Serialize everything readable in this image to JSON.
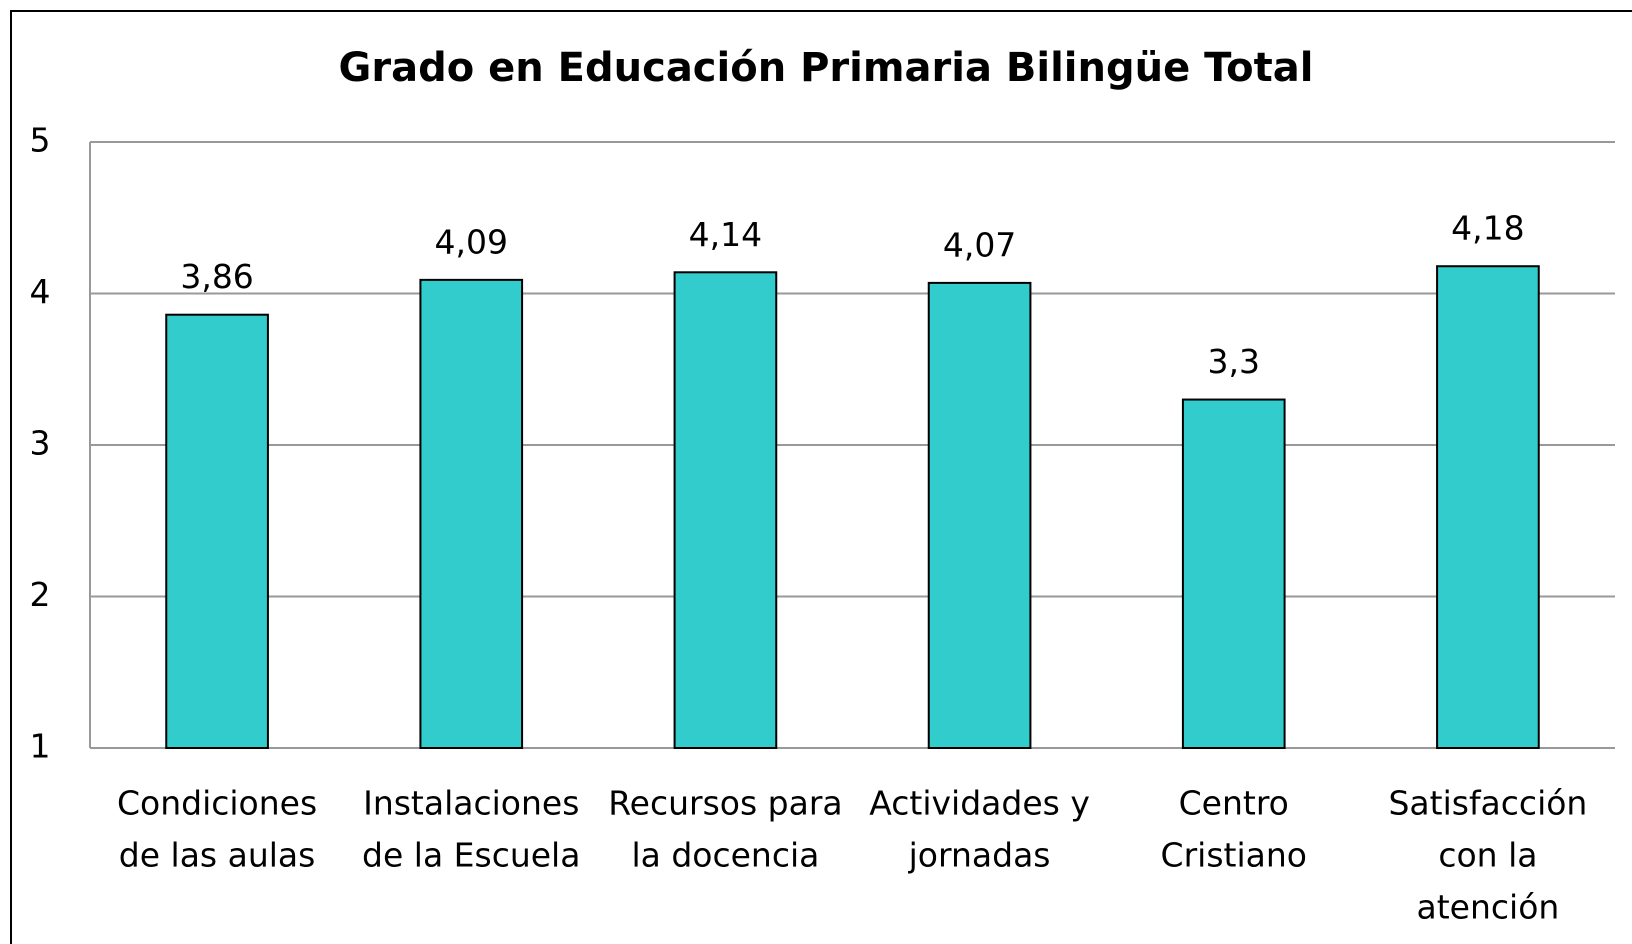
{
  "chart_data": {
    "type": "bar",
    "title": "Grado en Educación Primaria Bilingüe Total",
    "categories": [
      [
        "Condiciones",
        "de las aulas"
      ],
      [
        "Instalaciones",
        "de la Escuela"
      ],
      [
        "Recursos para",
        "la docencia"
      ],
      [
        "Actividades y",
        "jornadas"
      ],
      [
        "Centro",
        "Cristiano"
      ],
      [
        "Satisfacción",
        "con la",
        "atención"
      ]
    ],
    "values": [
      3.86,
      4.09,
      4.14,
      4.07,
      3.3,
      4.18
    ],
    "value_labels": [
      "3,86",
      "4,09",
      "4,14",
      "4,07",
      "3,3",
      "4,18"
    ],
    "color": "#33CCCC",
    "ylim": [
      1,
      5
    ],
    "yticks": [
      1,
      2,
      3,
      4,
      5
    ],
    "grid": true
  }
}
